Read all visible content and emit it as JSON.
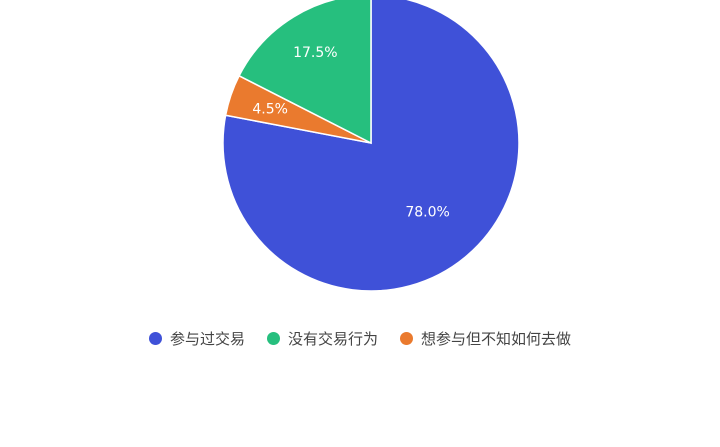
{
  "chart_data": {
    "type": "pie",
    "start_angle": "top, clockwise",
    "slices": [
      {
        "name": "参与过交易",
        "value": 78.0,
        "label": "78.0%",
        "color": "#3f51d8"
      },
      {
        "name": "没有交易行为",
        "value": 17.5,
        "label": "17.5%",
        "color": "#26bf7e"
      },
      {
        "name": "想参与但不知如何去做",
        "value": 4.5,
        "label": "4.5%",
        "color": "#ea7a2e"
      }
    ],
    "legend_position": "bottom"
  }
}
